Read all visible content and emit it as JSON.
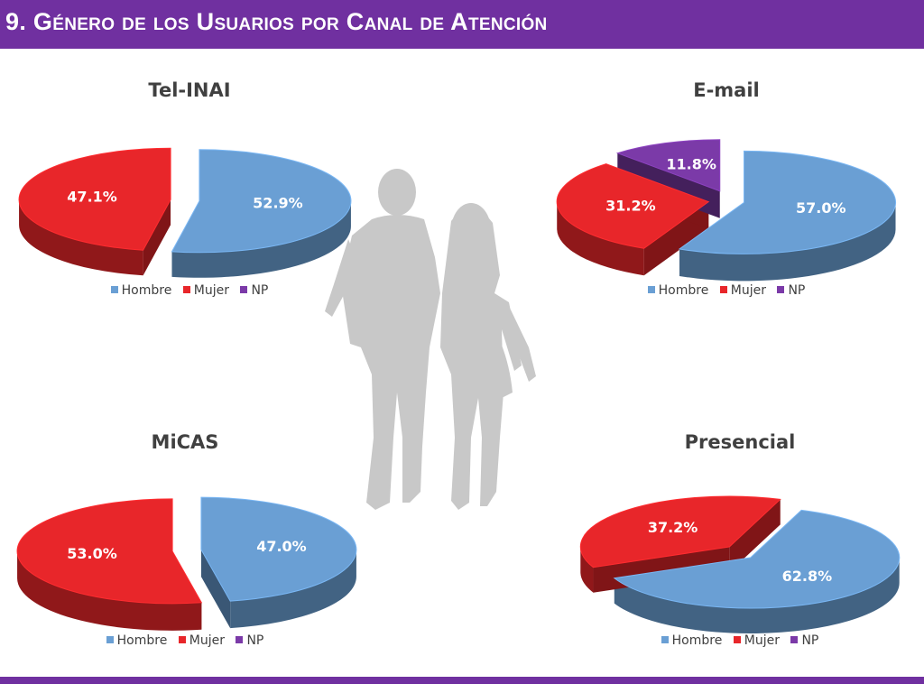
{
  "header": {
    "title": "9. Género de los Usuarios por Canal de Atención"
  },
  "colors": {
    "Hombre": "#6a9fd4",
    "Mujer": "#e8262a",
    "NP": "#7b3aa8",
    "header": "#7030a0",
    "silhouette": "#c8c8c8"
  },
  "chart_data": [
    {
      "type": "pie",
      "title": "Tel-INAI",
      "legend": [
        "Hombre",
        "Mujer",
        "NP"
      ],
      "legend_position": "bottom",
      "slices": [
        {
          "name": "Hombre",
          "value": 52.9,
          "label": "52.9%"
        },
        {
          "name": "Mujer",
          "value": 47.1,
          "label": "47.1%"
        }
      ]
    },
    {
      "type": "pie",
      "title": "E-mail",
      "legend": [
        "Hombre",
        "Mujer",
        "NP"
      ],
      "legend_position": "bottom",
      "slices": [
        {
          "name": "Hombre",
          "value": 57.0,
          "label": "57.0%"
        },
        {
          "name": "Mujer",
          "value": 31.2,
          "label": "31.2%"
        },
        {
          "name": "NP",
          "value": 11.8,
          "label": "11.8%"
        }
      ]
    },
    {
      "type": "pie",
      "title": "MiCAS",
      "legend": [
        "Hombre",
        "Mujer",
        "NP"
      ],
      "legend_position": "bottom",
      "slices": [
        {
          "name": "Hombre",
          "value": 47.0,
          "label": "47.0%"
        },
        {
          "name": "Mujer",
          "value": 53.0,
          "label": "53.0%"
        }
      ]
    },
    {
      "type": "pie",
      "title": "Presencial",
      "legend": [
        "Hombre",
        "Mujer",
        "NP"
      ],
      "legend_position": "bottom",
      "slices": [
        {
          "name": "Hombre",
          "value": 62.8,
          "label": "62.8%"
        },
        {
          "name": "Mujer",
          "value": 37.2,
          "label": "37.2%"
        }
      ]
    }
  ]
}
